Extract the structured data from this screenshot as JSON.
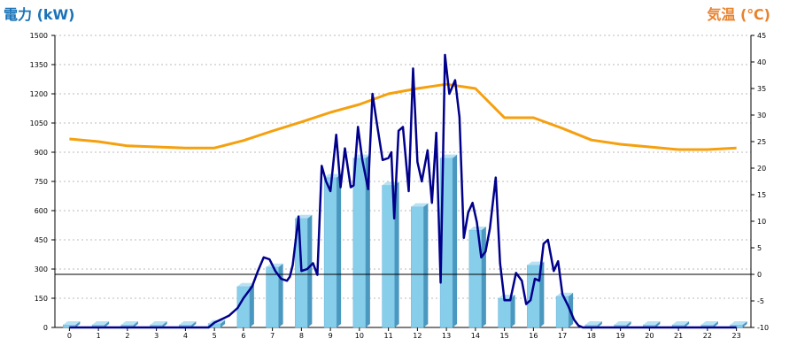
{
  "chart_data": {
    "type": "bar+line",
    "title_left": "電力 (kW)",
    "title_right": "気温 (℃)",
    "colors": {
      "title_left": "#1a73b8",
      "title_right": "#e8822c",
      "bars": "#87ceeb",
      "bars_side": "#4a98c0",
      "bars_top": "#b8e2f4",
      "power_line": "#00008b",
      "temp_line": "#f5a00e",
      "grid": "#bbbbbb"
    },
    "grid": true,
    "x_categories": [
      "0",
      "1",
      "2",
      "3",
      "4",
      "5",
      "6",
      "7",
      "8",
      "9",
      "10",
      "11",
      "12",
      "13",
      "14",
      "15",
      "16",
      "17",
      "18",
      "19",
      "20",
      "21",
      "22",
      "23"
    ],
    "y_left": {
      "min": 0,
      "max": 1500,
      "ticks": [
        "0",
        "150",
        "300",
        "450",
        "600",
        "750",
        "900",
        "1050",
        "1200",
        "1350",
        "1500"
      ]
    },
    "y_right": {
      "min": -10,
      "max": 45,
      "ticks": [
        "-10",
        "-5",
        "0",
        "5",
        "10",
        "15",
        "20",
        "25",
        "30",
        "35",
        "40",
        "45"
      ]
    },
    "hourly_power_bars": [
      0,
      0,
      0,
      0,
      0,
      20,
      210,
      310,
      560,
      770,
      870,
      730,
      620,
      870,
      500,
      150,
      320,
      160,
      0,
      0,
      0,
      0,
      0,
      0
    ],
    "power_line": {
      "x": [
        0,
        1,
        2,
        3,
        4,
        4.8,
        5,
        5.5,
        5.8,
        6,
        6.3,
        6.5,
        6.7,
        6.9,
        7.1,
        7.3,
        7.5,
        7.6,
        7.7,
        7.9,
        8.0,
        8.2,
        8.4,
        8.55,
        8.7,
        8.85,
        9.0,
        9.2,
        9.35,
        9.5,
        9.7,
        9.8,
        9.95,
        10.1,
        10.3,
        10.45,
        10.6,
        10.8,
        11.0,
        11.1,
        11.2,
        11.35,
        11.5,
        11.7,
        11.85,
        12.0,
        12.15,
        12.35,
        12.5,
        12.65,
        12.8,
        12.95,
        13.1,
        13.3,
        13.45,
        13.6,
        13.75,
        13.9,
        14.05,
        14.2,
        14.35,
        14.5,
        14.7,
        14.85,
        15.0,
        15.2,
        15.4,
        15.6,
        15.75,
        15.9,
        16.05,
        16.2,
        16.35,
        16.5,
        16.7,
        16.85,
        17.0,
        17.2,
        17.4,
        17.55,
        17.7,
        18,
        19,
        20,
        21,
        22,
        23
      ],
      "y": [
        0,
        0,
        0,
        0,
        0,
        0,
        25,
        60,
        100,
        150,
        210,
        290,
        360,
        350,
        290,
        250,
        240,
        260,
        320,
        570,
        290,
        300,
        330,
        270,
        830,
        750,
        700,
        990,
        720,
        920,
        720,
        730,
        1030,
        860,
        710,
        1200,
        1050,
        860,
        870,
        900,
        560,
        1010,
        1030,
        700,
        1330,
        850,
        750,
        910,
        640,
        1000,
        230,
        1400,
        1200,
        1270,
        1080,
        460,
        590,
        640,
        540,
        360,
        390,
        510,
        770,
        330,
        140,
        140,
        280,
        240,
        120,
        140,
        250,
        240,
        430,
        450,
        290,
        340,
        170,
        110,
        40,
        10,
        0,
        0,
        0,
        0,
        0,
        0,
        0
      ]
    },
    "temperature_line": {
      "x": [
        0,
        1,
        2,
        3,
        4,
        5,
        6,
        7,
        8,
        9,
        10,
        11,
        12,
        13,
        14,
        15,
        16,
        17,
        18,
        19,
        20,
        21,
        22,
        23
      ],
      "y": [
        25.5,
        25,
        24.2,
        24,
        23.8,
        23.8,
        25.2,
        27,
        28.7,
        30.5,
        32,
        34,
        35,
        35.8,
        35,
        29.5,
        29.5,
        27.5,
        25.3,
        24.5,
        24,
        23.5,
        23.5,
        23.8
      ]
    }
  }
}
